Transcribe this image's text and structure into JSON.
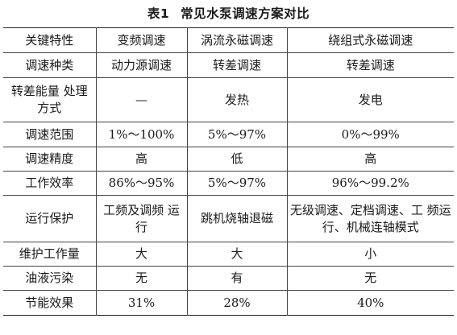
{
  "table": {
    "caption_number": "表1",
    "caption_title": "常见水泵调速方案对比",
    "headers": [
      "关键特性",
      "变频调速",
      "涡流永磁调速",
      "绕组式永磁调速"
    ],
    "rows": [
      [
        "调速种类",
        "动力源调速",
        "转差调速",
        "转差调速"
      ],
      [
        "转差能量\n处理方式",
        "—",
        "发热",
        "发电"
      ],
      [
        "调速范围",
        "1%～100%",
        "5%～97%",
        "0%～99%"
      ],
      [
        "调速精度",
        "高",
        "低",
        "高"
      ],
      [
        "工作效率",
        "86%～95%",
        "5%～97%",
        "96%～99.2%"
      ],
      [
        "运行保护",
        "工频及调频\n运行",
        "跳机烧轴退磁",
        "无级调速、定档调速、工\n频运行、机械连轴模式"
      ],
      [
        "维护工作量",
        "大",
        "大",
        "小"
      ],
      [
        "油液污染",
        "无",
        "有",
        "无"
      ],
      [
        "节能效果",
        "31%",
        "28%",
        "40%"
      ]
    ]
  }
}
